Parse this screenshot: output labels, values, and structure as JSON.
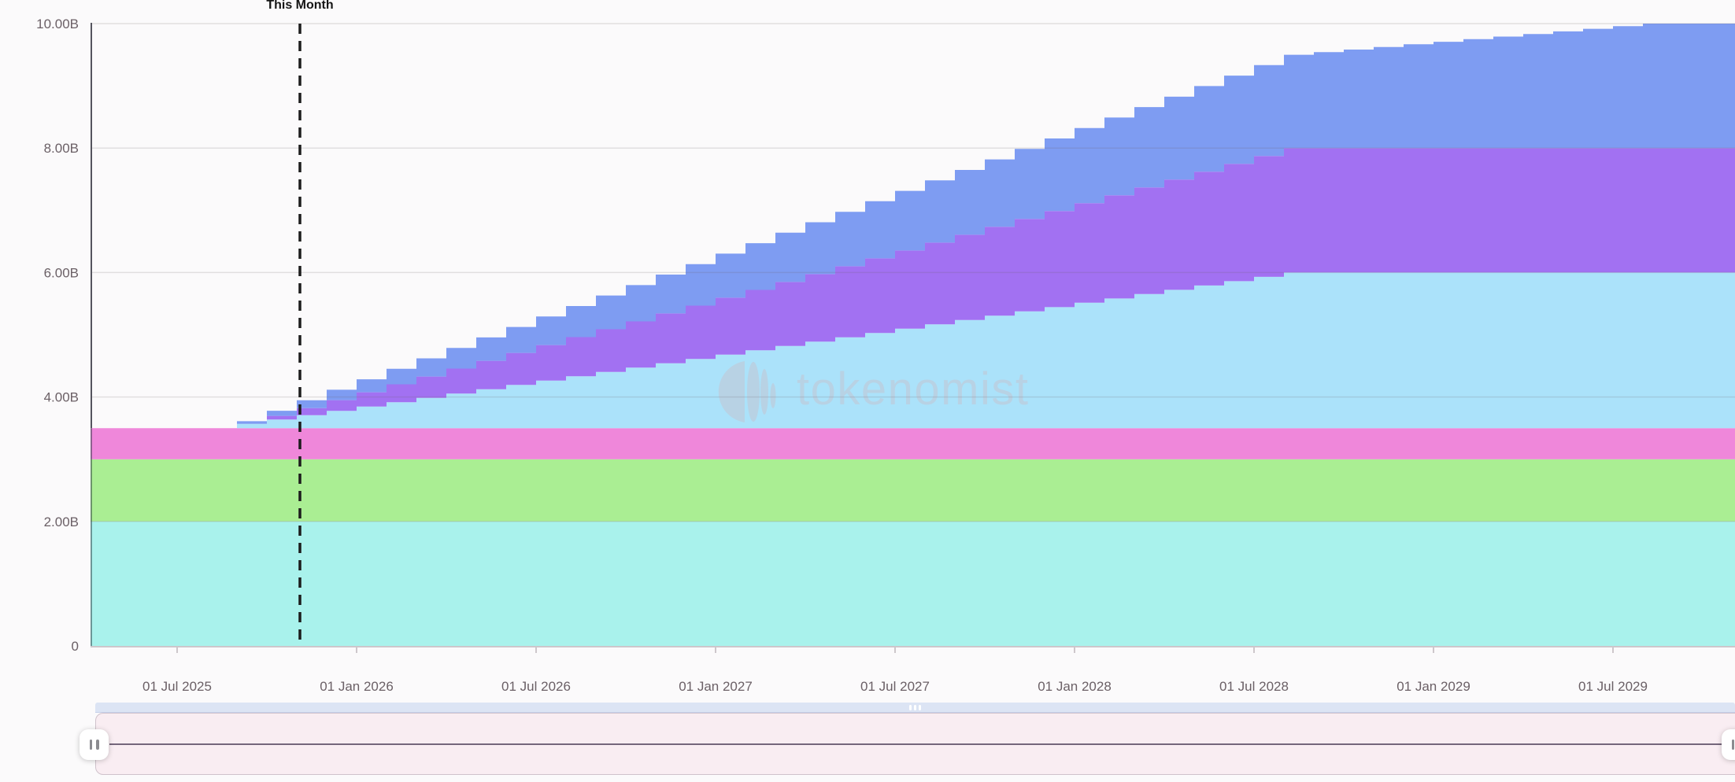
{
  "page": {
    "background": "#fbfafb"
  },
  "watermark": {
    "text": "tokenomist",
    "color": "#c3c5d3"
  },
  "navigator": {
    "strip_color": "#dce4f4",
    "panel_color": "#f9edf2",
    "line_color": "#75667b"
  },
  "chart_data": {
    "type": "area",
    "subtype": "stacked-step-monthly",
    "title": "",
    "watermark": "tokenomist",
    "unit": "B",
    "ylim": [
      0,
      10
    ],
    "grid": "horizontal",
    "legend": "none",
    "this_month": {
      "label": "This Month",
      "month": "2025-11"
    },
    "y_ticks": [
      {
        "value": 0,
        "label": "0"
      },
      {
        "value": 2,
        "label": "2.00B"
      },
      {
        "value": 4,
        "label": "4.00B"
      },
      {
        "value": 6,
        "label": "6.00B"
      },
      {
        "value": 8,
        "label": "8.00B"
      },
      {
        "value": 10,
        "label": "10.00B"
      }
    ],
    "x_ticks": [
      {
        "month": "2025-07",
        "label": "01 Jul 2025"
      },
      {
        "month": "2026-01",
        "label": "01 Jan 2026"
      },
      {
        "month": "2026-07",
        "label": "01 Jul 2026"
      },
      {
        "month": "2027-01",
        "label": "01 Jan 2027"
      },
      {
        "month": "2027-07",
        "label": "01 Jul 2027"
      },
      {
        "month": "2028-01",
        "label": "01 Jan 2028"
      },
      {
        "month": "2028-07",
        "label": "01 Jul 2028"
      },
      {
        "month": "2029-01",
        "label": "01 Jan 2029"
      },
      {
        "month": "2029-07",
        "label": "01 Jul 2029"
      }
    ],
    "months": [
      "2025-04",
      "2025-05",
      "2025-06",
      "2025-07",
      "2025-08",
      "2025-09",
      "2025-10",
      "2025-11",
      "2025-12",
      "2026-01",
      "2026-02",
      "2026-03",
      "2026-04",
      "2026-05",
      "2026-06",
      "2026-07",
      "2026-08",
      "2026-09",
      "2026-10",
      "2026-11",
      "2026-12",
      "2027-01",
      "2027-02",
      "2027-03",
      "2027-04",
      "2027-05",
      "2027-06",
      "2027-07",
      "2027-08",
      "2027-09",
      "2027-10",
      "2027-11",
      "2027-12",
      "2028-01",
      "2028-02",
      "2028-03",
      "2028-04",
      "2028-05",
      "2028-06",
      "2028-07",
      "2028-08",
      "2028-09",
      "2028-10",
      "2028-11",
      "2028-12",
      "2029-01",
      "2029-02",
      "2029-03",
      "2029-04",
      "2029-05",
      "2029-06",
      "2029-07",
      "2029-08",
      "2029-09",
      "2029-10",
      "2029-11"
    ],
    "series": [
      {
        "name": "band-1-cyan",
        "color": "#a9f2ec",
        "value_constant": 2.0
      },
      {
        "name": "band-2-green",
        "color": "#aaee93",
        "value_constant": 1.0
      },
      {
        "name": "band-3-pink",
        "color": "#ef87da",
        "value_constant": 0.5
      },
      {
        "name": "band-4-sky",
        "color": "#abe2fa",
        "values": [
          0,
          0,
          0,
          0,
          0,
          0.069,
          0.139,
          0.208,
          0.278,
          0.347,
          0.417,
          0.486,
          0.556,
          0.625,
          0.694,
          0.764,
          0.833,
          0.903,
          0.972,
          1.042,
          1.111,
          1.181,
          1.25,
          1.319,
          1.389,
          1.458,
          1.528,
          1.597,
          1.667,
          1.736,
          1.806,
          1.875,
          1.944,
          2.014,
          2.083,
          2.153,
          2.222,
          2.292,
          2.361,
          2.431,
          2.5,
          2.5,
          2.5,
          2.5,
          2.5,
          2.5,
          2.5,
          2.5,
          2.5,
          2.5,
          2.5,
          2.5,
          2.5,
          2.5,
          2.5,
          2.5
        ]
      },
      {
        "name": "band-5-purple",
        "color": "#a271f2",
        "values": [
          0,
          0,
          0,
          0,
          0,
          0,
          0.057,
          0.114,
          0.171,
          0.229,
          0.286,
          0.343,
          0.4,
          0.457,
          0.514,
          0.571,
          0.629,
          0.686,
          0.743,
          0.8,
          0.857,
          0.914,
          0.971,
          1.029,
          1.086,
          1.143,
          1.2,
          1.257,
          1.314,
          1.371,
          1.429,
          1.486,
          1.543,
          1.6,
          1.657,
          1.714,
          1.771,
          1.829,
          1.886,
          1.943,
          2.0,
          2.0,
          2.0,
          2.0,
          2.0,
          2.0,
          2.0,
          2.0,
          2.0,
          2.0,
          2.0,
          2.0,
          2.0,
          2.0,
          2.0,
          2.0
        ]
      },
      {
        "name": "band-6-cornflower",
        "color": "#7e9cf2",
        "values": [
          0,
          0,
          0,
          0,
          0,
          0.042,
          0.083,
          0.125,
          0.167,
          0.208,
          0.25,
          0.292,
          0.333,
          0.375,
          0.417,
          0.458,
          0.5,
          0.542,
          0.583,
          0.625,
          0.667,
          0.708,
          0.75,
          0.792,
          0.833,
          0.875,
          0.917,
          0.958,
          1.0,
          1.042,
          1.083,
          1.125,
          1.167,
          1.208,
          1.25,
          1.292,
          1.333,
          1.375,
          1.417,
          1.458,
          1.5,
          1.542,
          1.583,
          1.625,
          1.667,
          1.708,
          1.75,
          1.792,
          1.833,
          1.875,
          1.917,
          1.958,
          2.0,
          2.0,
          2.0,
          2.0
        ]
      }
    ]
  }
}
